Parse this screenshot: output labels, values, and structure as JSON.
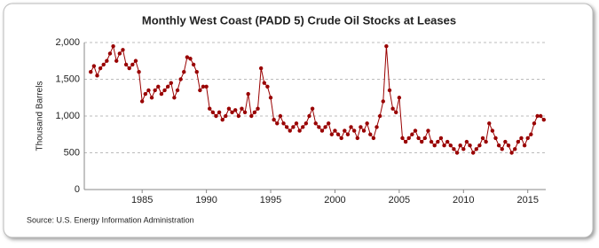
{
  "chart_data": {
    "type": "line",
    "title": "Monthly West Coast (PADD 5) Crude Oil Stocks at Leases",
    "y_label": "Thousand Barrels",
    "source": "Source: U.S. Energy Information Administration",
    "x": [
      1981,
      1981.25,
      1981.5,
      1981.75,
      1982,
      1982.25,
      1982.5,
      1982.75,
      1983,
      1983.25,
      1983.5,
      1983.75,
      1984,
      1984.25,
      1984.5,
      1984.75,
      1985,
      1985.25,
      1985.5,
      1985.75,
      1986,
      1986.25,
      1986.5,
      1986.75,
      1987,
      1987.25,
      1987.5,
      1987.75,
      1988,
      1988.25,
      1988.5,
      1988.75,
      1989,
      1989.25,
      1989.5,
      1989.75,
      1990,
      1990.25,
      1990.5,
      1990.75,
      1991,
      1991.25,
      1991.5,
      1991.75,
      1992,
      1992.25,
      1992.5,
      1992.75,
      1993,
      1993.25,
      1993.5,
      1993.75,
      1994,
      1994.25,
      1994.5,
      1994.75,
      1995,
      1995.25,
      1995.5,
      1995.75,
      1996,
      1996.25,
      1996.5,
      1996.75,
      1997,
      1997.25,
      1997.5,
      1997.75,
      1998,
      1998.25,
      1998.5,
      1998.75,
      1999,
      1999.25,
      1999.5,
      1999.75,
      2000,
      2000.25,
      2000.5,
      2000.75,
      2001,
      2001.25,
      2001.5,
      2001.75,
      2002,
      2002.25,
      2002.5,
      2002.75,
      2003,
      2003.25,
      2003.5,
      2003.75,
      2004,
      2004.25,
      2004.5,
      2004.75,
      2005,
      2005.25,
      2005.5,
      2005.75,
      2006,
      2006.25,
      2006.5,
      2006.75,
      2007,
      2007.25,
      2007.5,
      2007.75,
      2008,
      2008.25,
      2008.5,
      2008.75,
      2009,
      2009.25,
      2009.5,
      2009.75,
      2010,
      2010.25,
      2010.5,
      2010.75,
      2011,
      2011.25,
      2011.5,
      2011.75,
      2012,
      2012.25,
      2012.5,
      2012.75,
      2013,
      2013.25,
      2013.5,
      2013.75,
      2014,
      2014.25,
      2014.5,
      2014.75,
      2015,
      2015.25,
      2015.5,
      2015.75,
      2016,
      2016.25
    ],
    "series": [
      {
        "name": "West Coast Crude Oil Stocks at Leases",
        "color": "#990000",
        "values": [
          1600,
          1680,
          1550,
          1650,
          1700,
          1750,
          1850,
          1950,
          1750,
          1850,
          1900,
          1700,
          1650,
          1700,
          1750,
          1600,
          1200,
          1300,
          1350,
          1250,
          1350,
          1400,
          1300,
          1350,
          1400,
          1450,
          1250,
          1350,
          1500,
          1600,
          1800,
          1780,
          1700,
          1600,
          1350,
          1400,
          1400,
          1100,
          1050,
          1000,
          1050,
          950,
          1000,
          1100,
          1050,
          1080,
          1000,
          1100,
          1050,
          1300,
          1000,
          1050,
          1100,
          1650,
          1450,
          1400,
          1250,
          950,
          900,
          1000,
          900,
          850,
          800,
          850,
          900,
          800,
          850,
          900,
          1000,
          1100,
          900,
          850,
          800,
          850,
          900,
          750,
          800,
          750,
          700,
          800,
          750,
          850,
          800,
          700,
          850,
          800,
          900,
          750,
          700,
          850,
          1000,
          1200,
          1950,
          1350,
          1100,
          1050,
          1250,
          700,
          650,
          700,
          750,
          800,
          700,
          650,
          700,
          800,
          650,
          600,
          650,
          700,
          600,
          650,
          600,
          550,
          500,
          600,
          550,
          650,
          600,
          500,
          550,
          600,
          700,
          650,
          900,
          800,
          700,
          600,
          550,
          650,
          600,
          500,
          550,
          650,
          700,
          600,
          700,
          750,
          900,
          1000,
          1000,
          950
        ]
      }
    ],
    "xlim": [
      1980.5,
      2016.4
    ],
    "xticks": [
      1985,
      1990,
      1995,
      2000,
      2005,
      2010,
      2015
    ],
    "ylim": [
      0,
      2000
    ],
    "yticks": [
      0,
      500,
      {
        "value": 1000,
        "label": "1,000"
      },
      {
        "value": 1500,
        "label": "1,500"
      },
      {
        "value": 2000,
        "label": "2,000"
      }
    ],
    "grid": true
  }
}
